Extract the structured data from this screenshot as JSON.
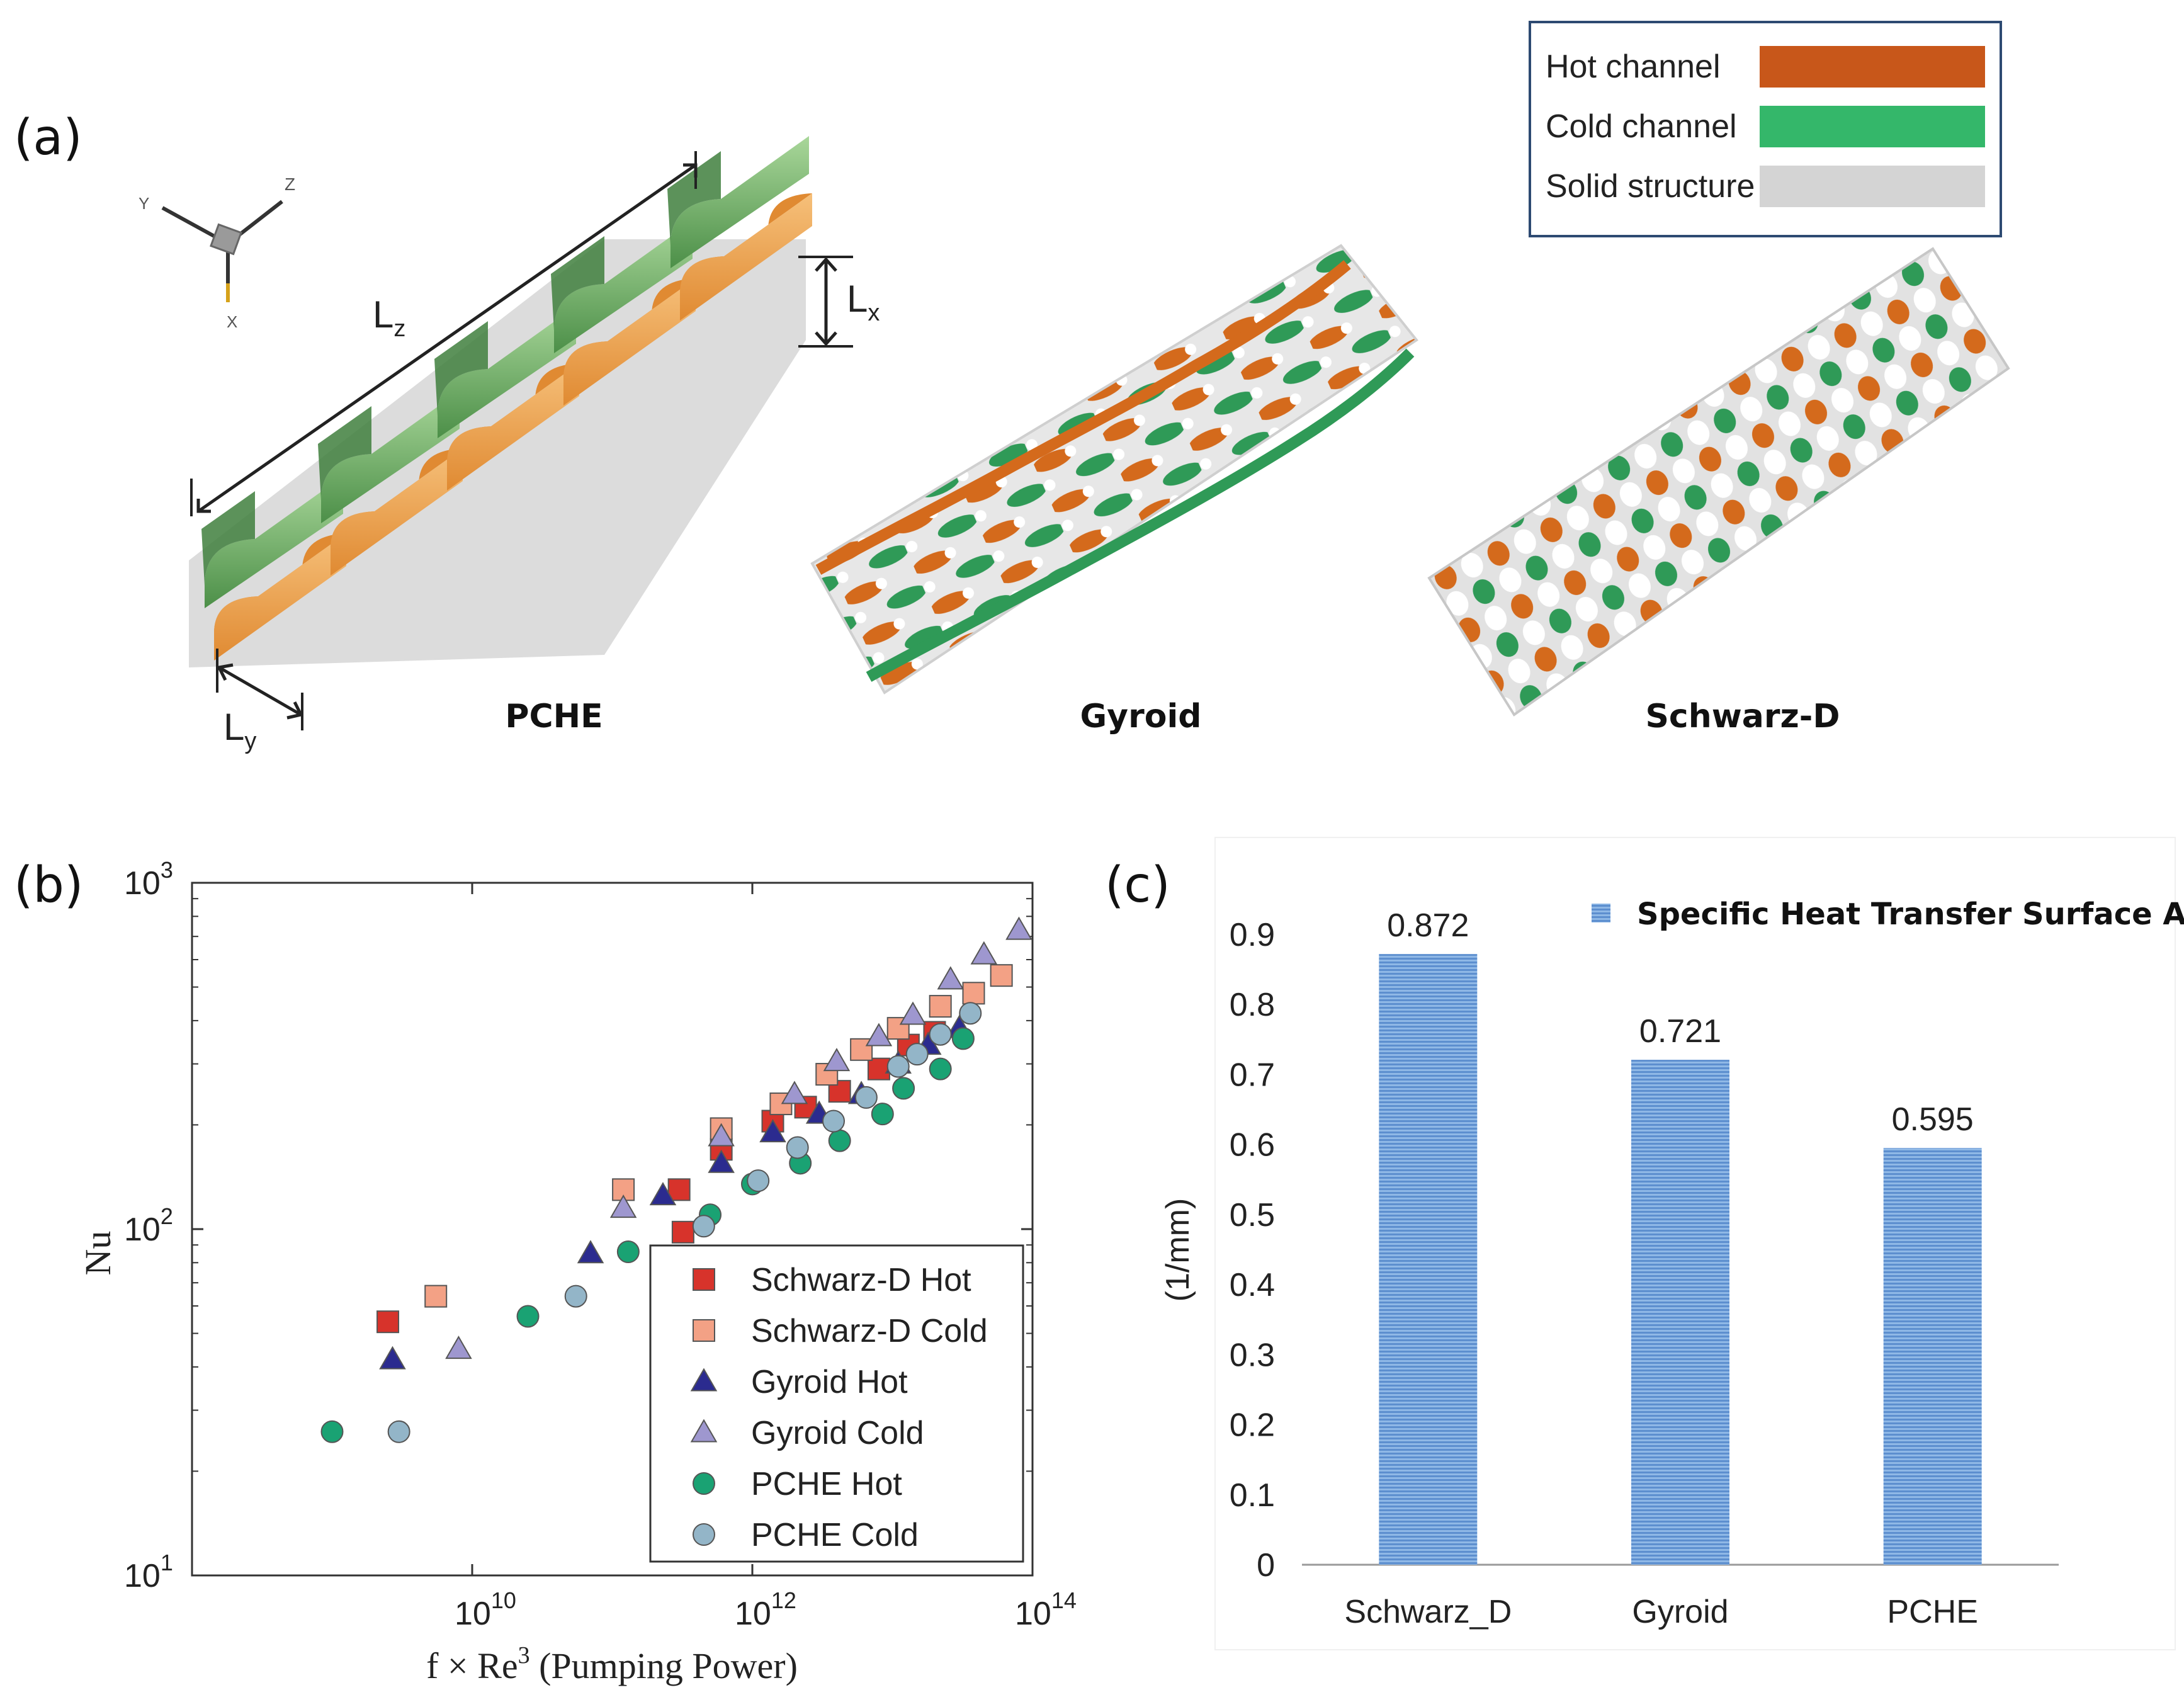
{
  "panels": {
    "a": {
      "label": "(a)",
      "legend": [
        {
          "name": "Hot channel",
          "color": "#c8571a"
        },
        {
          "name": "Cold channel",
          "color": "#34b76a"
        },
        {
          "name": "Solid structure",
          "color": "#d4d4d4"
        }
      ],
      "captions": [
        "PCHE",
        "Gyroid",
        "Schwarz-D"
      ],
      "dims": {
        "lz": "L",
        "lz_sub": "z",
        "lx": "L",
        "lx_sub": "x",
        "ly": "L",
        "ly_sub": "y"
      },
      "axes": {
        "x": "X",
        "y": "Y",
        "z": "Z"
      }
    },
    "b": {
      "label": "(b)"
    },
    "c": {
      "label": "(c)"
    }
  },
  "chart_data": [
    {
      "type": "scatter",
      "panel": "b",
      "xscale": "log",
      "yscale": "log",
      "xlim": [
        100000000.0,
        100000000000000.0
      ],
      "ylim": [
        10,
        1000
      ],
      "xlabel": "f × Re",
      "xlabel_sup": "3",
      "xlabel_suffix": " (Pumping Power)",
      "ylabel": "Nu",
      "xticks": [
        {
          "base": "10",
          "exp": "10",
          "value": 10000000000.0
        },
        {
          "base": "10",
          "exp": "12",
          "value": 1000000000000.0
        },
        {
          "base": "10",
          "exp": "14",
          "value": 100000000000000.0
        }
      ],
      "yticks": [
        {
          "base": "10",
          "exp": "1",
          "value": 10
        },
        {
          "base": "10",
          "exp": "2",
          "value": 100
        },
        {
          "base": "10",
          "exp": "3",
          "value": 1000
        }
      ],
      "legend_position": "bottom-right",
      "series": [
        {
          "name": "Schwarz-D Hot",
          "marker": "square",
          "color": "#d7332b",
          "points": [
            [
              2500000000.0,
              54
            ],
            [
              320000000000.0,
              98
            ],
            [
              300000000000.0,
              130
            ],
            [
              600000000000.0,
              170
            ],
            [
              1400000000000.0,
              205
            ],
            [
              2400000000000.0,
              225
            ],
            [
              4200000000000.0,
              250
            ],
            [
              8000000000000.0,
              290
            ],
            [
              13000000000000.0,
              340
            ],
            [
              20000000000000.0,
              370
            ]
          ]
        },
        {
          "name": "Schwarz-D Cold",
          "marker": "square",
          "color": "#f3a185",
          "points": [
            [
              5500000000.0,
              64
            ],
            [
              120000000000.0,
              130
            ],
            [
              600000000000.0,
              195
            ],
            [
              1600000000000.0,
              230
            ],
            [
              3400000000000.0,
              280
            ],
            [
              6000000000000.0,
              330
            ],
            [
              11000000000000.0,
              380
            ],
            [
              22000000000000.0,
              440
            ],
            [
              38000000000000.0,
              480
            ],
            [
              60000000000000.0,
              540
            ]
          ]
        },
        {
          "name": "Gyroid Hot",
          "marker": "triangle",
          "color": "#2b2b8f",
          "points": [
            [
              2700000000.0,
              42
            ],
            [
              70000000000.0,
              85
            ],
            [
              230000000000.0,
              125
            ],
            [
              600000000000.0,
              155
            ],
            [
              1400000000000.0,
              190
            ],
            [
              3000000000000.0,
              215
            ],
            [
              6000000000000.0,
              245
            ],
            [
              11000000000000.0,
              300
            ],
            [
              18000000000000.0,
              340
            ],
            [
              30000000000000.0,
              380
            ]
          ]
        },
        {
          "name": "Gyroid Cold",
          "marker": "triangle",
          "color": "#9e97cf",
          "points": [
            [
              8000000000.0,
              45
            ],
            [
              120000000000.0,
              115
            ],
            [
              600000000000.0,
              185
            ],
            [
              2000000000000.0,
              245
            ],
            [
              4000000000000.0,
              305
            ],
            [
              8000000000000.0,
              360
            ],
            [
              14000000000000.0,
              415
            ],
            [
              26000000000000.0,
              525
            ],
            [
              45000000000000.0,
              620
            ],
            [
              80000000000000.0,
              730
            ]
          ]
        },
        {
          "name": "PCHE Hot",
          "marker": "circle",
          "color": "#1aa273",
          "points": [
            [
              1000000000.0,
              26
            ],
            [
              25000000000.0,
              56
            ],
            [
              130000000000.0,
              86
            ],
            [
              500000000000.0,
              110
            ],
            [
              1000000000000.0,
              135
            ],
            [
              2200000000000.0,
              155
            ],
            [
              4200000000000.0,
              180
            ],
            [
              8500000000000.0,
              215
            ],
            [
              12000000000000.0,
              255
            ],
            [
              22000000000000.0,
              290
            ],
            [
              32000000000000.0,
              355
            ]
          ]
        },
        {
          "name": "PCHE Cold",
          "marker": "circle",
          "color": "#93b5c8",
          "points": [
            [
              3000000000.0,
              26
            ],
            [
              55000000000.0,
              64
            ],
            [
              450000000000.0,
              102
            ],
            [
              1100000000000.0,
              138
            ],
            [
              2100000000000.0,
              172
            ],
            [
              3800000000000.0,
              205
            ],
            [
              6500000000000.0,
              240
            ],
            [
              11000000000000.0,
              295
            ],
            [
              15000000000000.0,
              320
            ],
            [
              22000000000000.0,
              365
            ],
            [
              36000000000000.0,
              420
            ]
          ]
        }
      ]
    },
    {
      "type": "bar",
      "panel": "c",
      "title": "",
      "ylabel": "(1/mm)",
      "xlabel": "",
      "ylim": [
        0,
        0.9
      ],
      "yticks": [
        "0",
        "0.1",
        "0.2",
        "0.3",
        "0.4",
        "0.5",
        "0.6",
        "0.7",
        "0.8",
        "0.9"
      ],
      "categories": [
        "Schwarz_D",
        "Gyroid",
        "PCHE"
      ],
      "series": [
        {
          "name": "Specific Heat Transfer Surface Area",
          "color": "#7aa6d9",
          "values": [
            0.872,
            0.721,
            0.595
          ],
          "labels": [
            "0.872",
            "0.721",
            "0.595"
          ]
        }
      ],
      "legend_position": "top"
    }
  ]
}
